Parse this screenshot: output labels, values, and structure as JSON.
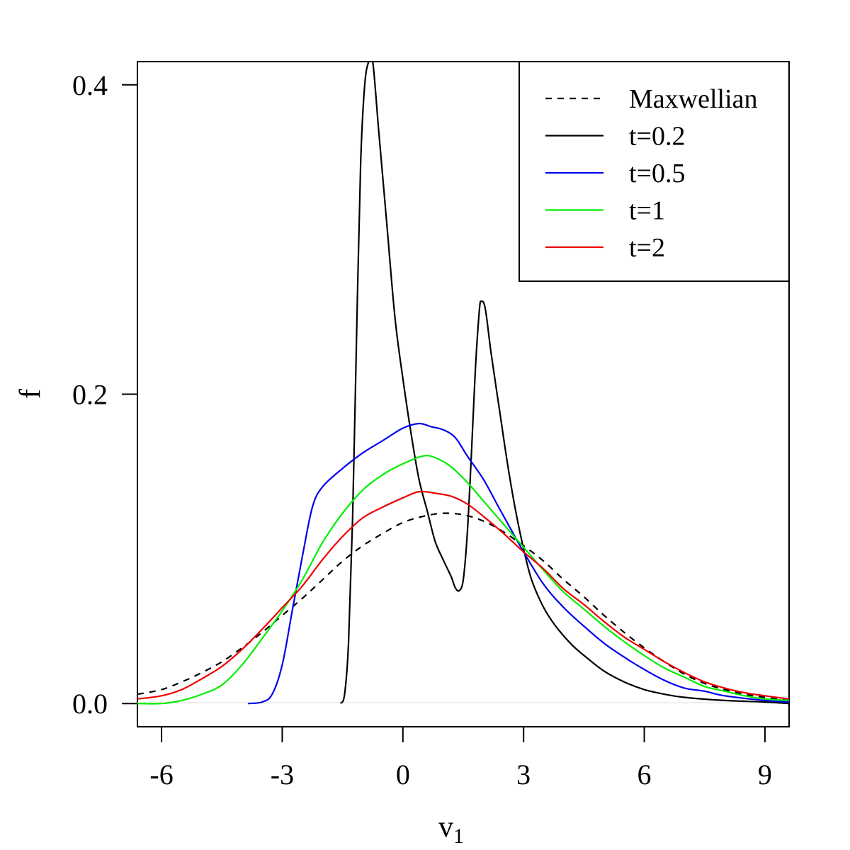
{
  "chart_data": {
    "type": "line",
    "title": "",
    "xlabel": "v",
    "xlabel_subscript": "1",
    "ylabel": "f",
    "xlim": [
      -6.6,
      9.6
    ],
    "ylim": [
      -0.015,
      0.415
    ],
    "x_ticks": [
      -6,
      -3,
      0,
      3,
      6,
      9
    ],
    "x_tick_labels": [
      "-6",
      "-3",
      "0",
      "3",
      "6",
      "9"
    ],
    "y_ticks": [
      0.0,
      0.2,
      0.4
    ],
    "y_tick_labels": [
      "0.0",
      "0.2",
      "0.4"
    ],
    "grid": false,
    "legend_position": "top-right",
    "series": [
      {
        "name": "Maxwellian",
        "color": "#000000",
        "dash": "dashed",
        "points": [
          [
            -6.6,
            0.006
          ],
          [
            -6,
            0.009
          ],
          [
            -5.5,
            0.014
          ],
          [
            -5,
            0.02
          ],
          [
            -4.5,
            0.027
          ],
          [
            -4,
            0.036
          ],
          [
            -3.5,
            0.046
          ],
          [
            -3,
            0.057
          ],
          [
            -2.5,
            0.068
          ],
          [
            -2,
            0.08
          ],
          [
            -1.5,
            0.092
          ],
          [
            -1,
            0.102
          ],
          [
            -0.5,
            0.11
          ],
          [
            0,
            0.117
          ],
          [
            0.5,
            0.121
          ],
          [
            1,
            0.123
          ],
          [
            1.5,
            0.122
          ],
          [
            2,
            0.118
          ],
          [
            2.5,
            0.111
          ],
          [
            3,
            0.102
          ],
          [
            3.5,
            0.092
          ],
          [
            4,
            0.08
          ],
          [
            4.5,
            0.069
          ],
          [
            5,
            0.057
          ],
          [
            5.5,
            0.046
          ],
          [
            6,
            0.036
          ],
          [
            6.5,
            0.027
          ],
          [
            7,
            0.019
          ],
          [
            7.5,
            0.013
          ],
          [
            8,
            0.009
          ],
          [
            8.5,
            0.006
          ],
          [
            9,
            0.004
          ],
          [
            9.6,
            0.002
          ]
        ]
      },
      {
        "name": "t=0.2",
        "color": "#000000",
        "dash": "solid",
        "points": [
          [
            -1.55,
            0.0
          ],
          [
            -1.45,
            0.006
          ],
          [
            -1.35,
            0.04
          ],
          [
            -1.25,
            0.12
          ],
          [
            -1.15,
            0.24
          ],
          [
            -1.05,
            0.35
          ],
          [
            -0.95,
            0.4
          ],
          [
            -0.85,
            0.415
          ],
          [
            -0.75,
            0.415
          ],
          [
            -0.6,
            0.37
          ],
          [
            -0.4,
            0.31
          ],
          [
            -0.2,
            0.25
          ],
          [
            0,
            0.21
          ],
          [
            0.2,
            0.175
          ],
          [
            0.4,
            0.145
          ],
          [
            0.6,
            0.125
          ],
          [
            0.8,
            0.105
          ],
          [
            1,
            0.093
          ],
          [
            1.2,
            0.082
          ],
          [
            1.3,
            0.075
          ],
          [
            1.4,
            0.073
          ],
          [
            1.5,
            0.08
          ],
          [
            1.6,
            0.11
          ],
          [
            1.7,
            0.16
          ],
          [
            1.8,
            0.215
          ],
          [
            1.9,
            0.254
          ],
          [
            1.95,
            0.26
          ],
          [
            2.05,
            0.255
          ],
          [
            2.2,
            0.225
          ],
          [
            2.4,
            0.19
          ],
          [
            2.6,
            0.155
          ],
          [
            2.8,
            0.125
          ],
          [
            3,
            0.1
          ],
          [
            3.2,
            0.08
          ],
          [
            3.5,
            0.062
          ],
          [
            3.8,
            0.05
          ],
          [
            4.2,
            0.038
          ],
          [
            4.6,
            0.029
          ],
          [
            5,
            0.021
          ],
          [
            5.5,
            0.014
          ],
          [
            6,
            0.009
          ],
          [
            6.5,
            0.006
          ],
          [
            7,
            0.004
          ],
          [
            8,
            0.002
          ],
          [
            9,
            0.001
          ],
          [
            9.6,
            0.0
          ]
        ]
      },
      {
        "name": "t=0.5",
        "color": "#0000ee",
        "dash": "solid",
        "points": [
          [
            -3.85,
            0.0
          ],
          [
            -3.5,
            0.001
          ],
          [
            -3.25,
            0.006
          ],
          [
            -3,
            0.025
          ],
          [
            -2.75,
            0.06
          ],
          [
            -2.5,
            0.095
          ],
          [
            -2.25,
            0.127
          ],
          [
            -2,
            0.14
          ],
          [
            -1.5,
            0.152
          ],
          [
            -1,
            0.162
          ],
          [
            -0.5,
            0.17
          ],
          [
            0,
            0.178
          ],
          [
            0.4,
            0.181
          ],
          [
            0.7,
            0.179
          ],
          [
            1,
            0.177
          ],
          [
            1.3,
            0.172
          ],
          [
            1.6,
            0.16
          ],
          [
            2,
            0.145
          ],
          [
            2.4,
            0.126
          ],
          [
            2.7,
            0.112
          ],
          [
            3,
            0.098
          ],
          [
            3.5,
            0.077
          ],
          [
            4,
            0.062
          ],
          [
            4.5,
            0.05
          ],
          [
            5,
            0.039
          ],
          [
            5.5,
            0.03
          ],
          [
            6,
            0.022
          ],
          [
            6.5,
            0.015
          ],
          [
            7,
            0.01
          ],
          [
            7.5,
            0.008
          ],
          [
            8,
            0.005
          ],
          [
            9,
            0.002
          ],
          [
            9.6,
            0.001
          ]
        ]
      },
      {
        "name": "t=1",
        "color": "#00ee00",
        "dash": "solid",
        "points": [
          [
            -6.6,
            0.0
          ],
          [
            -6,
            0.0
          ],
          [
            -5.5,
            0.002
          ],
          [
            -5,
            0.006
          ],
          [
            -4.5,
            0.012
          ],
          [
            -4,
            0.025
          ],
          [
            -3.5,
            0.042
          ],
          [
            -3,
            0.06
          ],
          [
            -2.5,
            0.08
          ],
          [
            -2,
            0.104
          ],
          [
            -1.5,
            0.123
          ],
          [
            -1,
            0.138
          ],
          [
            -0.5,
            0.148
          ],
          [
            0,
            0.155
          ],
          [
            0.5,
            0.16
          ],
          [
            0.8,
            0.159
          ],
          [
            1.2,
            0.153
          ],
          [
            1.6,
            0.143
          ],
          [
            2,
            0.131
          ],
          [
            2.5,
            0.116
          ],
          [
            3,
            0.101
          ],
          [
            3.5,
            0.086
          ],
          [
            4,
            0.072
          ],
          [
            4.5,
            0.061
          ],
          [
            5,
            0.05
          ],
          [
            5.5,
            0.04
          ],
          [
            6,
            0.031
          ],
          [
            6.5,
            0.023
          ],
          [
            7,
            0.017
          ],
          [
            7.5,
            0.011
          ],
          [
            8,
            0.008
          ],
          [
            8.5,
            0.005
          ],
          [
            9,
            0.003
          ],
          [
            9.6,
            0.002
          ]
        ]
      },
      {
        "name": "t=2",
        "color": "#ee0000",
        "dash": "solid",
        "points": [
          [
            -6.6,
            0.003
          ],
          [
            -6,
            0.005
          ],
          [
            -5.5,
            0.009
          ],
          [
            -5,
            0.016
          ],
          [
            -4.5,
            0.024
          ],
          [
            -4,
            0.035
          ],
          [
            -3.5,
            0.048
          ],
          [
            -3,
            0.062
          ],
          [
            -2.5,
            0.076
          ],
          [
            -2,
            0.093
          ],
          [
            -1.5,
            0.108
          ],
          [
            -1,
            0.12
          ],
          [
            -0.5,
            0.127
          ],
          [
            0,
            0.133
          ],
          [
            0.4,
            0.137
          ],
          [
            0.8,
            0.136
          ],
          [
            1.2,
            0.134
          ],
          [
            1.6,
            0.129
          ],
          [
            2,
            0.121
          ],
          [
            2.5,
            0.11
          ],
          [
            3,
            0.098
          ],
          [
            3.5,
            0.087
          ],
          [
            4,
            0.074
          ],
          [
            4.5,
            0.064
          ],
          [
            5,
            0.053
          ],
          [
            5.5,
            0.043
          ],
          [
            6,
            0.035
          ],
          [
            6.5,
            0.027
          ],
          [
            7,
            0.02
          ],
          [
            7.5,
            0.014
          ],
          [
            8,
            0.01
          ],
          [
            8.5,
            0.007
          ],
          [
            9,
            0.005
          ],
          [
            9.6,
            0.003
          ]
        ]
      }
    ]
  }
}
